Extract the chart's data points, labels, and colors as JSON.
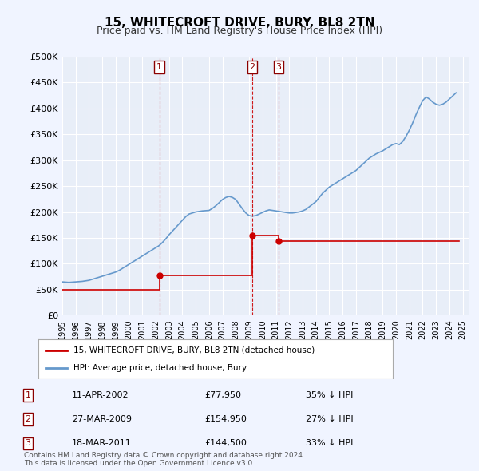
{
  "title": "15, WHITECROFT DRIVE, BURY, BL8 2TN",
  "subtitle": "Price paid vs. HM Land Registry's House Price Index (HPI)",
  "xlabel": "",
  "ylabel": "",
  "ylim": [
    0,
    500000
  ],
  "yticks": [
    0,
    50000,
    100000,
    150000,
    200000,
    250000,
    300000,
    350000,
    400000,
    450000,
    500000
  ],
  "ytick_labels": [
    "£0",
    "£50K",
    "£100K",
    "£150K",
    "£200K",
    "£250K",
    "£300K",
    "£350K",
    "£400K",
    "£450K",
    "£500K"
  ],
  "xlim_start": 1995.0,
  "xlim_end": 2025.5,
  "background_color": "#f0f4ff",
  "plot_bg_color": "#e8eef8",
  "grid_color": "#ffffff",
  "sale_color": "#cc0000",
  "hpi_color": "#6699cc",
  "sales": [
    {
      "label": "1",
      "date": 2002.27,
      "price": 77950,
      "x_label": "2002"
    },
    {
      "label": "2",
      "date": 2009.23,
      "price": 154950,
      "x_label": "2009"
    },
    {
      "label": "3",
      "date": 2011.21,
      "price": 144500,
      "x_label": "2011"
    }
  ],
  "sale_annotations": [
    {
      "num": "1",
      "date_str": "11-APR-2002",
      "price_str": "£77,950",
      "hpi_str": "35% ↓ HPI"
    },
    {
      "num": "2",
      "date_str": "27-MAR-2009",
      "price_str": "£154,950",
      "hpi_str": "27% ↓ HPI"
    },
    {
      "num": "3",
      "date_str": "18-MAR-2011",
      "price_str": "£144,500",
      "hpi_str": "33% ↓ HPI"
    }
  ],
  "legend_label_red": "15, WHITECROFT DRIVE, BURY, BL8 2TN (detached house)",
  "legend_label_blue": "HPI: Average price, detached house, Bury",
  "footer_line1": "Contains HM Land Registry data © Crown copyright and database right 2024.",
  "footer_line2": "This data is licensed under the Open Government Licence v3.0.",
  "hpi_data_x": [
    1995.0,
    1995.25,
    1995.5,
    1995.75,
    1996.0,
    1996.25,
    1996.5,
    1996.75,
    1997.0,
    1997.25,
    1997.5,
    1997.75,
    1998.0,
    1998.25,
    1998.5,
    1998.75,
    1999.0,
    1999.25,
    1999.5,
    1999.75,
    2000.0,
    2000.25,
    2000.5,
    2000.75,
    2001.0,
    2001.25,
    2001.5,
    2001.75,
    2002.0,
    2002.25,
    2002.5,
    2002.75,
    2003.0,
    2003.25,
    2003.5,
    2003.75,
    2004.0,
    2004.25,
    2004.5,
    2004.75,
    2005.0,
    2005.25,
    2005.5,
    2005.75,
    2006.0,
    2006.25,
    2006.5,
    2006.75,
    2007.0,
    2007.25,
    2007.5,
    2007.75,
    2008.0,
    2008.25,
    2008.5,
    2008.75,
    2009.0,
    2009.25,
    2009.5,
    2009.75,
    2010.0,
    2010.25,
    2010.5,
    2010.75,
    2011.0,
    2011.25,
    2011.5,
    2011.75,
    2012.0,
    2012.25,
    2012.5,
    2012.75,
    2013.0,
    2013.25,
    2013.5,
    2013.75,
    2014.0,
    2014.25,
    2014.5,
    2014.75,
    2015.0,
    2015.25,
    2015.5,
    2015.75,
    2016.0,
    2016.25,
    2016.5,
    2016.75,
    2017.0,
    2017.25,
    2017.5,
    2017.75,
    2018.0,
    2018.25,
    2018.5,
    2018.75,
    2019.0,
    2019.25,
    2019.5,
    2019.75,
    2020.0,
    2020.25,
    2020.5,
    2020.75,
    2021.0,
    2021.25,
    2021.5,
    2021.75,
    2022.0,
    2022.25,
    2022.5,
    2022.75,
    2023.0,
    2023.25,
    2023.5,
    2023.75,
    2024.0,
    2024.25,
    2024.5
  ],
  "hpi_data_y": [
    65000,
    64500,
    64000,
    64500,
    65000,
    65500,
    66000,
    67000,
    68000,
    70000,
    72000,
    74000,
    76000,
    78000,
    80000,
    82000,
    84000,
    87000,
    91000,
    95000,
    99000,
    103000,
    107000,
    111000,
    115000,
    119000,
    123000,
    127000,
    131000,
    135000,
    141000,
    148000,
    156000,
    163000,
    170000,
    177000,
    184000,
    191000,
    196000,
    198000,
    200000,
    201000,
    202000,
    202500,
    203000,
    207000,
    212000,
    218000,
    224000,
    228000,
    230000,
    228000,
    224000,
    215000,
    206000,
    198000,
    193000,
    192000,
    193000,
    196000,
    199000,
    202000,
    204000,
    203000,
    202000,
    201000,
    200000,
    199000,
    198000,
    198000,
    199000,
    200000,
    202000,
    205000,
    210000,
    215000,
    220000,
    228000,
    236000,
    242000,
    248000,
    252000,
    256000,
    260000,
    264000,
    268000,
    272000,
    276000,
    280000,
    286000,
    292000,
    298000,
    304000,
    308000,
    312000,
    315000,
    318000,
    322000,
    326000,
    330000,
    332000,
    330000,
    336000,
    346000,
    358000,
    372000,
    388000,
    402000,
    415000,
    422000,
    418000,
    412000,
    408000,
    406000,
    408000,
    412000,
    418000,
    424000,
    430000
  ],
  "sold_line_x": [
    1995.0,
    2002.27,
    2002.27,
    2009.23,
    2009.23,
    2011.21,
    2011.21,
    2024.75
  ],
  "sold_line_y": [
    50000,
    50000,
    77950,
    77950,
    154950,
    154950,
    144500,
    144500
  ]
}
